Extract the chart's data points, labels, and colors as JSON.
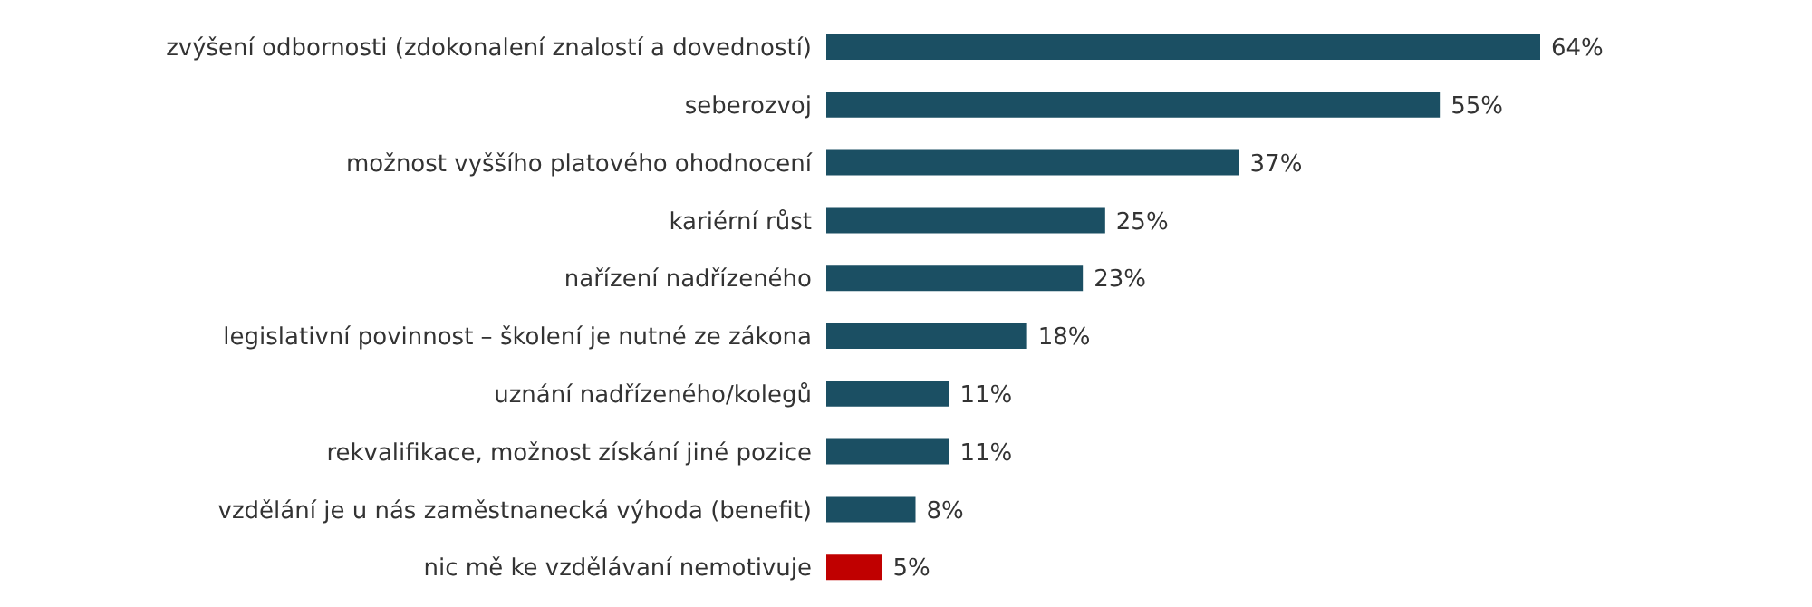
{
  "chart_data": {
    "type": "bar",
    "orientation": "horizontal",
    "categories": [
      "zvýšení odbornosti (zdokonalení znalostí a dovedností)",
      "seberozvoj",
      "možnost vyššího platového ohodnocení",
      "kariérní růst",
      "nařízení nadřízeného",
      "legislativní povinnost – školení je nutné ze zákona",
      "uznání nadřízeného/kolegů",
      "rekvalifikace, možnost získání jiné pozice",
      "vzdělání je u nás zaměstnanecká výhoda (benefit)",
      "nic mě ke vzdělávaní nemotivuje"
    ],
    "values": [
      64,
      55,
      37,
      25,
      23,
      18,
      11,
      11,
      8,
      5
    ],
    "colors": [
      "#1b4f63",
      "#1b4f63",
      "#1b4f63",
      "#1b4f63",
      "#1b4f63",
      "#1b4f63",
      "#1b4f63",
      "#1b4f63",
      "#1b4f63",
      "#c00000"
    ],
    "value_labels": [
      "64%",
      "55%",
      "37%",
      "25%",
      "23%",
      "18%",
      "11%",
      "11%",
      "8%",
      "5%"
    ]
  }
}
